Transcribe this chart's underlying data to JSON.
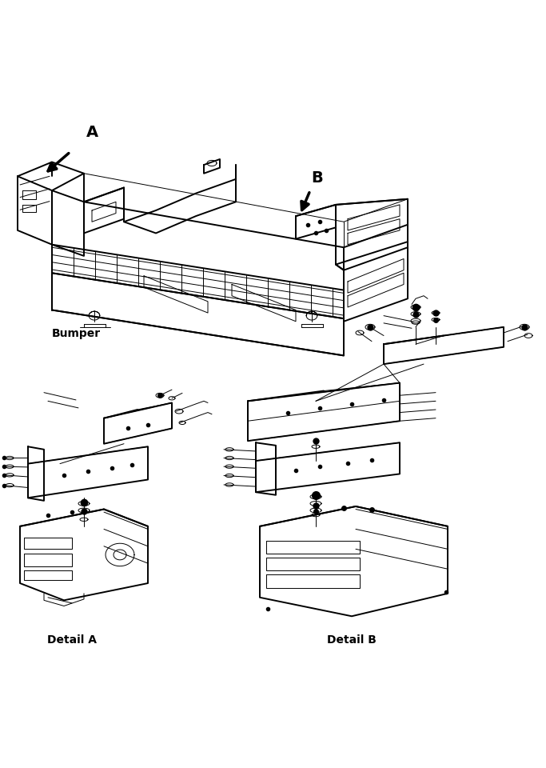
{
  "bg_color": "#ffffff",
  "line_color": "#000000",
  "fig_width": 6.83,
  "fig_height": 9.6,
  "dpi": 100,
  "label_bumper": "Bumper",
  "label_detail_a": "Detail A",
  "label_detail_b": "Detail B",
  "label_A": "A",
  "label_B": "B",
  "font_size_labels": 10,
  "font_size_AB": 14,
  "lw_main": 1.4,
  "lw_thin": 0.7,
  "lw_thick": 2.0
}
